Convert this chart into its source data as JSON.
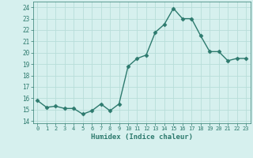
{
  "x": [
    0,
    1,
    2,
    3,
    4,
    5,
    6,
    7,
    8,
    9,
    10,
    11,
    12,
    13,
    14,
    15,
    16,
    17,
    18,
    19,
    20,
    21,
    22,
    23
  ],
  "y": [
    15.8,
    15.2,
    15.3,
    15.1,
    15.1,
    14.6,
    14.9,
    15.5,
    14.9,
    15.5,
    18.8,
    19.5,
    19.8,
    21.8,
    22.5,
    23.9,
    23.0,
    23.0,
    21.5,
    20.1,
    20.1,
    19.3,
    19.5,
    19.5
  ],
  "xlabel": "Humidex (Indice chaleur)",
  "xlim": [
    -0.5,
    23.5
  ],
  "ylim": [
    13.8,
    24.5
  ],
  "yticks": [
    14,
    15,
    16,
    17,
    18,
    19,
    20,
    21,
    22,
    23,
    24
  ],
  "xtick_labels": [
    "0",
    "1",
    "2",
    "3",
    "4",
    "5",
    "6",
    "7",
    "8",
    "9",
    "10",
    "11",
    "12",
    "13",
    "14",
    "15",
    "16",
    "17",
    "18",
    "19",
    "20",
    "21",
    "22",
    "23"
  ],
  "line_color": "#2d7a6e",
  "marker": "D",
  "marker_size": 2.5,
  "bg_color": "#d6f0ee",
  "grid_color": "#b8ddd9",
  "line_width": 1.0,
  "tick_color": "#2d7a6e",
  "label_color": "#2d7a6e"
}
